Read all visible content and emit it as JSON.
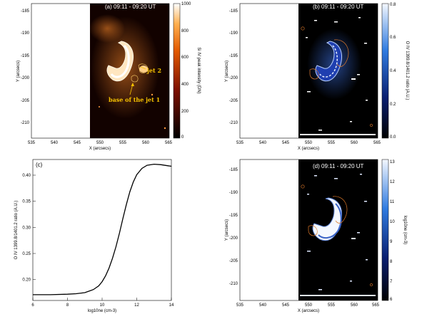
{
  "panels": {
    "a": {
      "title": "(a) 09:11 - 09:20 UT",
      "xlabel": "X (arcsecs)",
      "ylabel": "Y (arcsecs)",
      "cbar_label": "Si IV peak intensity (DN)",
      "cbar_ticks": [
        "1000",
        "800",
        "600",
        "400",
        "200",
        "0"
      ],
      "annotations": {
        "jet2": "jet 2",
        "base": "base of the jet 1"
      }
    },
    "b": {
      "title": "(b) 09:11 - 09:20 UT",
      "xlabel": "X (arcsecs)",
      "ylabel": "Y (arcsecs)",
      "cbar_label": "O IV 1399.8/1401.2 ratio (A.U.)",
      "cbar_ticks": [
        "0.8",
        "0.6",
        "0.4",
        "0.2",
        "0.0"
      ]
    },
    "c": {
      "title": "(c)",
      "xlabel": "log10ne (cm-3)",
      "ylabel": "O IV 1399.8/1401.2 ratio (A.U.)"
    },
    "d": {
      "title": "(d) 09:11 - 09:20 UT",
      "xlabel": "X (arcsecs)",
      "ylabel": "Y (arcsecs)",
      "cbar_label": "log10ne (cm-3)",
      "cbar_ticks": [
        "13",
        "12",
        "11",
        "10",
        "9",
        "8",
        "7",
        "6"
      ]
    }
  },
  "map_axes": {
    "x_ticks": [
      "535",
      "540",
      "545",
      "550",
      "555",
      "560",
      "565"
    ],
    "y_ticks": [
      "-185",
      "-190",
      "-195",
      "-200",
      "-205",
      "-210"
    ]
  },
  "chart_data": {
    "type": "line",
    "title": "(c)",
    "xlabel": "log10ne (cm-3)",
    "ylabel": "O IV 1399.8/1401.2 ratio (A.U.)",
    "xlim": [
      6,
      14
    ],
    "ylim": [
      0.16,
      0.43
    ],
    "x_ticks": [
      "6",
      "8",
      "10",
      "12",
      "14"
    ],
    "y_ticks": [
      "0.20",
      "0.25",
      "0.30",
      "0.35",
      "0.40"
    ],
    "series": [
      {
        "x": [
          6.0,
          7.0,
          8.0,
          8.5,
          9.0,
          9.5,
          9.8,
          10.0,
          10.2,
          10.4,
          10.6,
          10.8,
          11.0,
          11.2,
          11.4,
          11.6,
          11.8,
          12.0,
          12.3,
          12.6,
          13.0,
          13.4,
          13.8,
          14.0
        ],
        "y": [
          0.171,
          0.171,
          0.172,
          0.173,
          0.175,
          0.181,
          0.188,
          0.196,
          0.207,
          0.222,
          0.241,
          0.263,
          0.289,
          0.317,
          0.344,
          0.368,
          0.387,
          0.401,
          0.413,
          0.419,
          0.421,
          0.42,
          0.418,
          0.417
        ]
      }
    ]
  }
}
